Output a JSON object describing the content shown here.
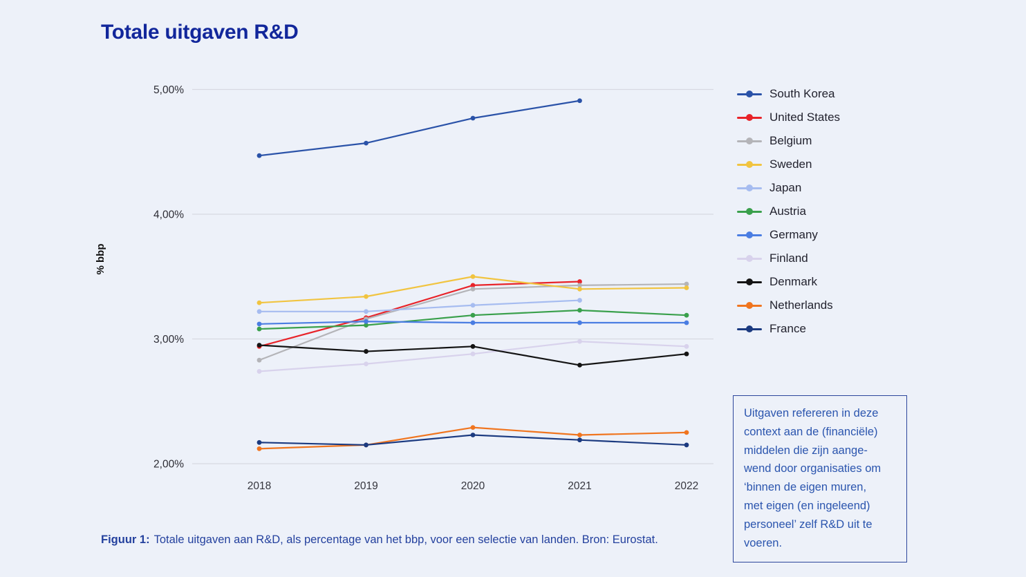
{
  "chart_data": {
    "type": "line",
    "title": "Totale uitgaven R&D",
    "x": [
      2018,
      2019,
      2020,
      2021,
      2022
    ],
    "x_labels": [
      "2018",
      "2019",
      "2020",
      "2021",
      "2022"
    ],
    "ylabel": "% bbp",
    "ylim": [
      2.0,
      5.0
    ],
    "yticks": [
      {
        "label": "5,00%",
        "value": 5.0
      },
      {
        "label": "4,00%",
        "value": 4.0
      },
      {
        "label": "3,00%",
        "value": 3.0
      },
      {
        "label": "2,00%",
        "value": 2.0
      }
    ],
    "grid": "horizontal",
    "legend_position": "right",
    "series": [
      {
        "name": "South Korea",
        "color": "#2a52a8",
        "values": [
          4.47,
          4.57,
          4.77,
          4.91,
          null
        ]
      },
      {
        "name": "United States",
        "color": "#e82329",
        "values": [
          2.94,
          3.17,
          3.43,
          3.46,
          null
        ]
      },
      {
        "name": "Belgium",
        "color": "#b4b4b8",
        "values": [
          2.83,
          3.16,
          3.4,
          3.43,
          3.44
        ]
      },
      {
        "name": "Sweden",
        "color": "#f1c440",
        "values": [
          3.29,
          3.34,
          3.5,
          3.4,
          3.41
        ]
      },
      {
        "name": "Japan",
        "color": "#a6bcf0",
        "values": [
          3.22,
          3.22,
          3.27,
          3.31,
          null
        ]
      },
      {
        "name": "Austria",
        "color": "#3aa04c",
        "values": [
          3.08,
          3.11,
          3.19,
          3.23,
          3.19
        ]
      },
      {
        "name": "Germany",
        "color": "#4a7de2",
        "values": [
          3.12,
          3.14,
          3.13,
          3.13,
          3.13
        ]
      },
      {
        "name": "Finland",
        "color": "#d8d2ec",
        "values": [
          2.74,
          2.8,
          2.88,
          2.98,
          2.94
        ]
      },
      {
        "name": "Denmark",
        "color": "#141414",
        "values": [
          2.95,
          2.9,
          2.94,
          2.79,
          2.88
        ]
      },
      {
        "name": "Netherlands",
        "color": "#f0751f",
        "values": [
          2.12,
          2.15,
          2.29,
          2.23,
          2.25
        ]
      },
      {
        "name": "France",
        "color": "#1b3a80",
        "values": [
          2.17,
          2.15,
          2.23,
          2.19,
          2.15
        ]
      }
    ]
  },
  "info_box": {
    "lines": [
      "Uitgaven refereren in deze",
      "context aan de (financiële)",
      "middelen die zijn aange-",
      "wend door organisaties om",
      "‘binnen de eigen muren,",
      "met eigen (en ingeleend)",
      "personeel’ zelf R&D uit te",
      "voeren."
    ]
  },
  "caption": {
    "label": "Figuur 1:",
    "text": "Totale uitgaven aan R&D, als percentage van het bbp, voor een selectie van landen. Bron: Eurostat."
  },
  "colors": {
    "page_background": "#edf1f9",
    "title": "#12279b",
    "caption_text": "#24419e",
    "info_box_border": "#2b459b",
    "info_box_text": "#2b55ae",
    "gridline": "#d7d9e2",
    "tick_text": "#2c2c34",
    "year_text": "#35353d"
  }
}
